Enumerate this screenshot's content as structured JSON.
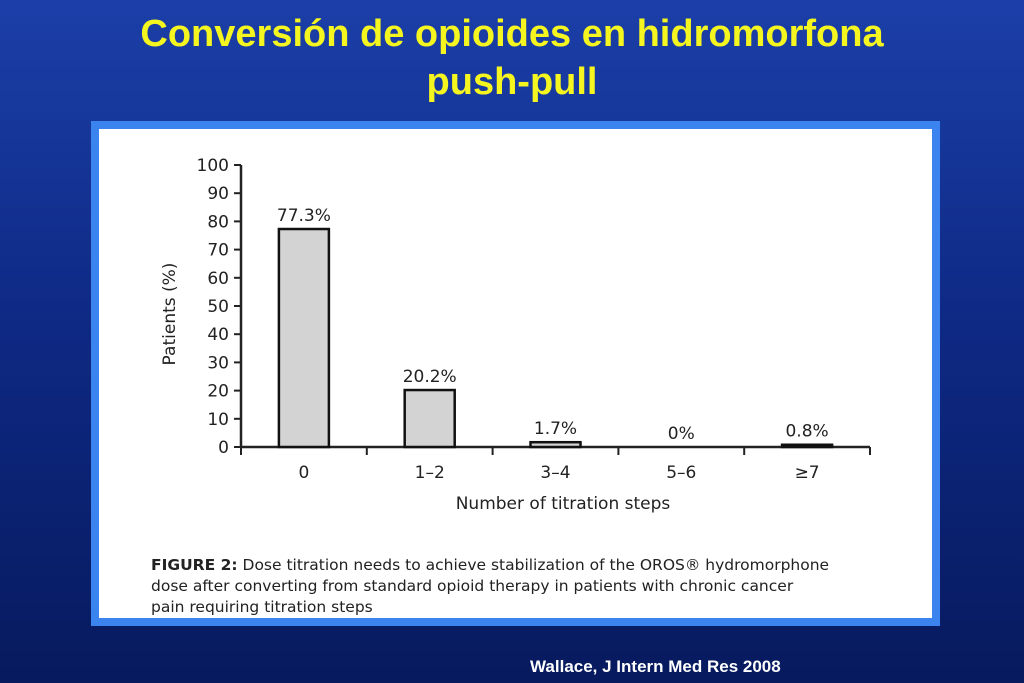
{
  "slide": {
    "title_line1": "Conversión de opioides en hidromorfona",
    "title_line2": "push-pull",
    "citation": "Wallace, J Intern Med Res 2008"
  },
  "figure": {
    "caption_label": "FIGURE 2:",
    "caption_line1": " Dose titration needs to achieve stabilization of the OROS® hydromorphone",
    "caption_line2": "dose after converting from standard opioid therapy in patients with chronic cancer",
    "caption_line3": "pain requiring titration steps"
  },
  "chart_data": {
    "type": "bar",
    "categories": [
      "0",
      "1–2",
      "3–4",
      "5–6",
      "≥7"
    ],
    "values": [
      77.3,
      20.2,
      1.7,
      0,
      0.8
    ],
    "data_labels": [
      "77.3%",
      "20.2%",
      "1.7%",
      "0%",
      "0.8%"
    ],
    "xlabel": "Number of titration steps",
    "ylabel": "Patients (%)",
    "ylim": [
      0,
      100
    ],
    "yticks": [
      0,
      10,
      20,
      30,
      40,
      50,
      60,
      70,
      80,
      90,
      100
    ],
    "grid": false,
    "bar_color": "#d3d3d3",
    "bar_edge_color": "#111111"
  }
}
